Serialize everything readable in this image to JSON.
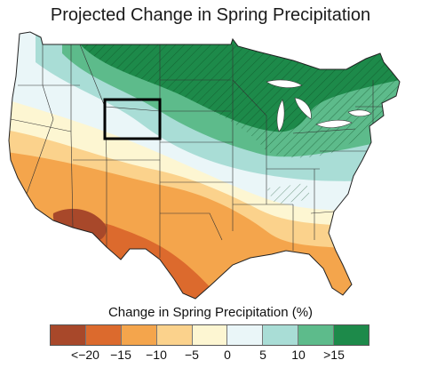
{
  "title": "Projected Change in Spring Precipitation",
  "legend": {
    "title": "Change in Spring Precipitation (%)",
    "bins": [
      {
        "color": "#a8482a"
      },
      {
        "color": "#dc6a2d"
      },
      {
        "color": "#f4a54c"
      },
      {
        "color": "#fbd28c"
      },
      {
        "color": "#fdf6d2"
      },
      {
        "color": "#eaf6f8"
      },
      {
        "color": "#a9ddd6"
      },
      {
        "color": "#5dbb8b"
      },
      {
        "color": "#1d8a4a"
      }
    ],
    "tick_labels": [
      "<−20",
      "−15",
      "−10",
      "−5",
      "0",
      "5",
      "10",
      ">15"
    ]
  },
  "map": {
    "region": "contiguous-united-states",
    "hatching_meaning_shown": false,
    "highlighted_box": "wyoming-outline"
  }
}
